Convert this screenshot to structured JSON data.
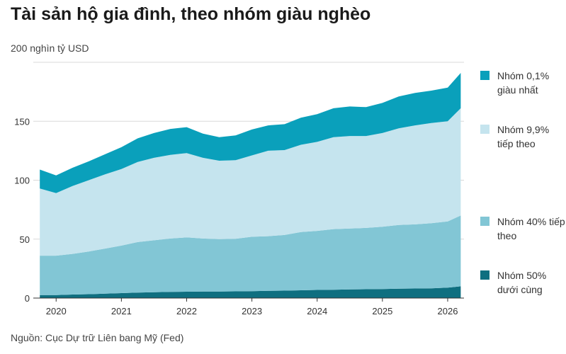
{
  "title": "Tài sản hộ gia đình, theo nhóm giàu nghèo",
  "unit_label": "200 nghìn tỷ USD",
  "source": "Nguồn: Cục Dự trữ Liên bang Mỹ (Fed)",
  "chart_data": {
    "type": "area",
    "stacked": true,
    "title": "Tài sản hộ gia đình, theo nhóm giàu nghèo",
    "ylabel": "nghìn tỷ USD",
    "ylim": [
      0,
      200
    ],
    "yticks": [
      0,
      50,
      100,
      150,
      200
    ],
    "ytick_labels": [
      "0",
      "50",
      "100",
      "150",
      ""
    ],
    "xlim": [
      2019.65,
      2026.25
    ],
    "xticks": [
      2020,
      2021,
      2022,
      2023,
      2024,
      2025,
      2026
    ],
    "xtick_labels": [
      "2020",
      "2021",
      "2022",
      "2023",
      "2024",
      "2025",
      "2026"
    ],
    "grid": "horizontal",
    "legend_position": "right",
    "x": [
      2019.75,
      2020.0,
      2020.25,
      2020.5,
      2020.75,
      2021.0,
      2021.25,
      2021.5,
      2021.75,
      2022.0,
      2022.25,
      2022.5,
      2022.75,
      2023.0,
      2023.25,
      2023.5,
      2023.75,
      2024.0,
      2024.25,
      2024.5,
      2024.75,
      2025.0,
      2025.25,
      2025.5,
      2025.75,
      2026.0,
      2026.2
    ],
    "series": [
      {
        "name": "Nhóm 50% dưới cùng",
        "color": "#0f6f80",
        "values": [
          2.5,
          2.6,
          3.0,
          3.3,
          3.8,
          4.2,
          4.6,
          4.9,
          5.2,
          5.4,
          5.5,
          5.6,
          5.7,
          5.9,
          6.1,
          6.3,
          6.6,
          6.9,
          7.1,
          7.3,
          7.5,
          7.7,
          7.9,
          8.1,
          8.3,
          8.8,
          10.0
        ]
      },
      {
        "name": "Nhóm 40% tiếp theo",
        "color": "#82c6d5",
        "values": [
          33.5,
          33.4,
          34.5,
          36.2,
          38.2,
          40.3,
          42.9,
          44.1,
          45.3,
          46.1,
          45.0,
          44.4,
          44.6,
          46.1,
          46.4,
          47.2,
          49.4,
          50.1,
          51.4,
          51.7,
          52.0,
          52.8,
          54.1,
          54.4,
          55.2,
          56.2,
          60.0
        ]
      },
      {
        "name": "Nhóm 9,9% tiếp theo",
        "color": "#c5e4ee",
        "values": [
          57.0,
          53.0,
          57.5,
          60.5,
          63.0,
          65.0,
          68.0,
          70.0,
          71.0,
          71.5,
          68.5,
          66.5,
          66.7,
          69.0,
          72.5,
          72.0,
          74.0,
          75.5,
          78.0,
          78.5,
          78.0,
          79.5,
          82.0,
          84.0,
          85.0,
          85.0,
          91.0
        ]
      },
      {
        "name": "Nhóm 0,1% giàu nhất",
        "color": "#0aa0bb",
        "values": [
          16.0,
          15.0,
          15.5,
          16.0,
          17.0,
          18.5,
          20.0,
          21.0,
          22.0,
          22.0,
          20.5,
          20.0,
          21.0,
          22.0,
          21.5,
          22.0,
          23.0,
          23.5,
          24.5,
          25.0,
          24.5,
          25.5,
          27.0,
          27.5,
          27.5,
          28.5,
          30.0
        ]
      }
    ]
  },
  "legend": [
    {
      "label": "Nhóm 0,1% giàu nhất",
      "color": "#0aa0bb"
    },
    {
      "label": "Nhóm 9,9% tiếp theo",
      "color": "#c5e4ee"
    },
    {
      "label": "Nhóm 40% tiếp theo",
      "color": "#82c6d5"
    },
    {
      "label": "Nhóm 50% dưới cùng",
      "color": "#0f6f80"
    }
  ]
}
